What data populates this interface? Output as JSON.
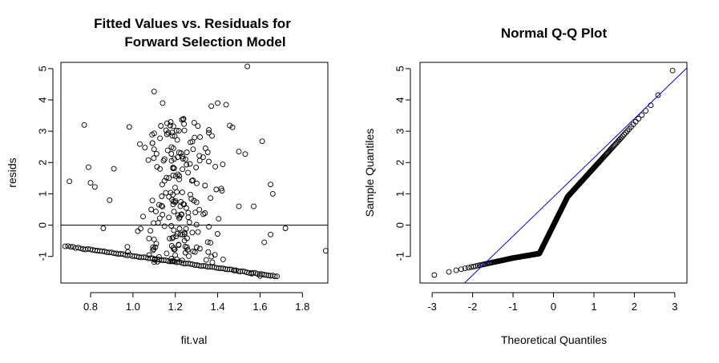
{
  "chart_data": [
    {
      "type": "scatter",
      "title_lines": [
        "Fitted Values vs. Residuals for",
        "Forward Selection Model"
      ],
      "xlabel": "fit.val",
      "ylabel": "resids",
      "xlim": [
        0.66,
        1.92
      ],
      "ylim": [
        -1.85,
        5.2
      ],
      "xticks": [
        "0.8",
        "1.0",
        "1.2",
        "1.4",
        "1.6",
        "1.8"
      ],
      "yticks": [
        "-1",
        "0",
        "1",
        "2",
        "3",
        "4",
        "5"
      ],
      "hline": 0,
      "band_line": {
        "x": [
          0.68,
          1.68
        ],
        "y": [
          -0.67,
          -1.64
        ]
      },
      "extra_points": [
        [
          0.7,
          1.4
        ],
        [
          0.77,
          3.2
        ],
        [
          0.79,
          1.85
        ],
        [
          0.8,
          1.35
        ],
        [
          0.82,
          1.22
        ],
        [
          0.86,
          -0.1
        ],
        [
          0.89,
          0.8
        ],
        [
          0.91,
          1.8
        ],
        [
          1.1,
          4.27
        ],
        [
          1.14,
          3.9
        ],
        [
          1.54,
          5.07
        ],
        [
          1.53,
          2.27
        ],
        [
          1.57,
          0.6
        ],
        [
          1.61,
          2.68
        ],
        [
          1.65,
          1.3
        ],
        [
          1.66,
          1.0
        ],
        [
          1.62,
          -0.55
        ],
        [
          1.65,
          -0.3
        ],
        [
          1.72,
          -0.1
        ],
        [
          1.91,
          -0.82
        ],
        [
          1.5,
          2.35
        ],
        [
          1.44,
          3.85
        ],
        [
          1.4,
          3.9
        ],
        [
          1.37,
          3.8
        ],
        [
          1.5,
          0.6
        ],
        [
          1.56,
          -1.55
        ],
        [
          1.6,
          -1.62
        ],
        [
          1.48,
          -1.45
        ]
      ],
      "cloud": {
        "x_range": [
          0.93,
          1.52
        ],
        "y_range": [
          -1.4,
          3.5
        ],
        "count": 210
      }
    },
    {
      "type": "scatter",
      "title": "Normal Q-Q Plot",
      "xlabel": "Theoretical Quantiles",
      "ylabel": "Sample Quantiles",
      "xlim": [
        -3.3,
        3.3
      ],
      "ylim": [
        -1.85,
        5.2
      ],
      "xticks": [
        "-3",
        "-2",
        "-1",
        "0",
        "1",
        "2",
        "3"
      ],
      "yticks": [
        "-1",
        "0",
        "1",
        "2",
        "3",
        "4",
        "5"
      ],
      "n": 310,
      "qq_line": {
        "intercept": 0.9,
        "slope": 1.25
      },
      "line_color": "#0000ff"
    }
  ]
}
